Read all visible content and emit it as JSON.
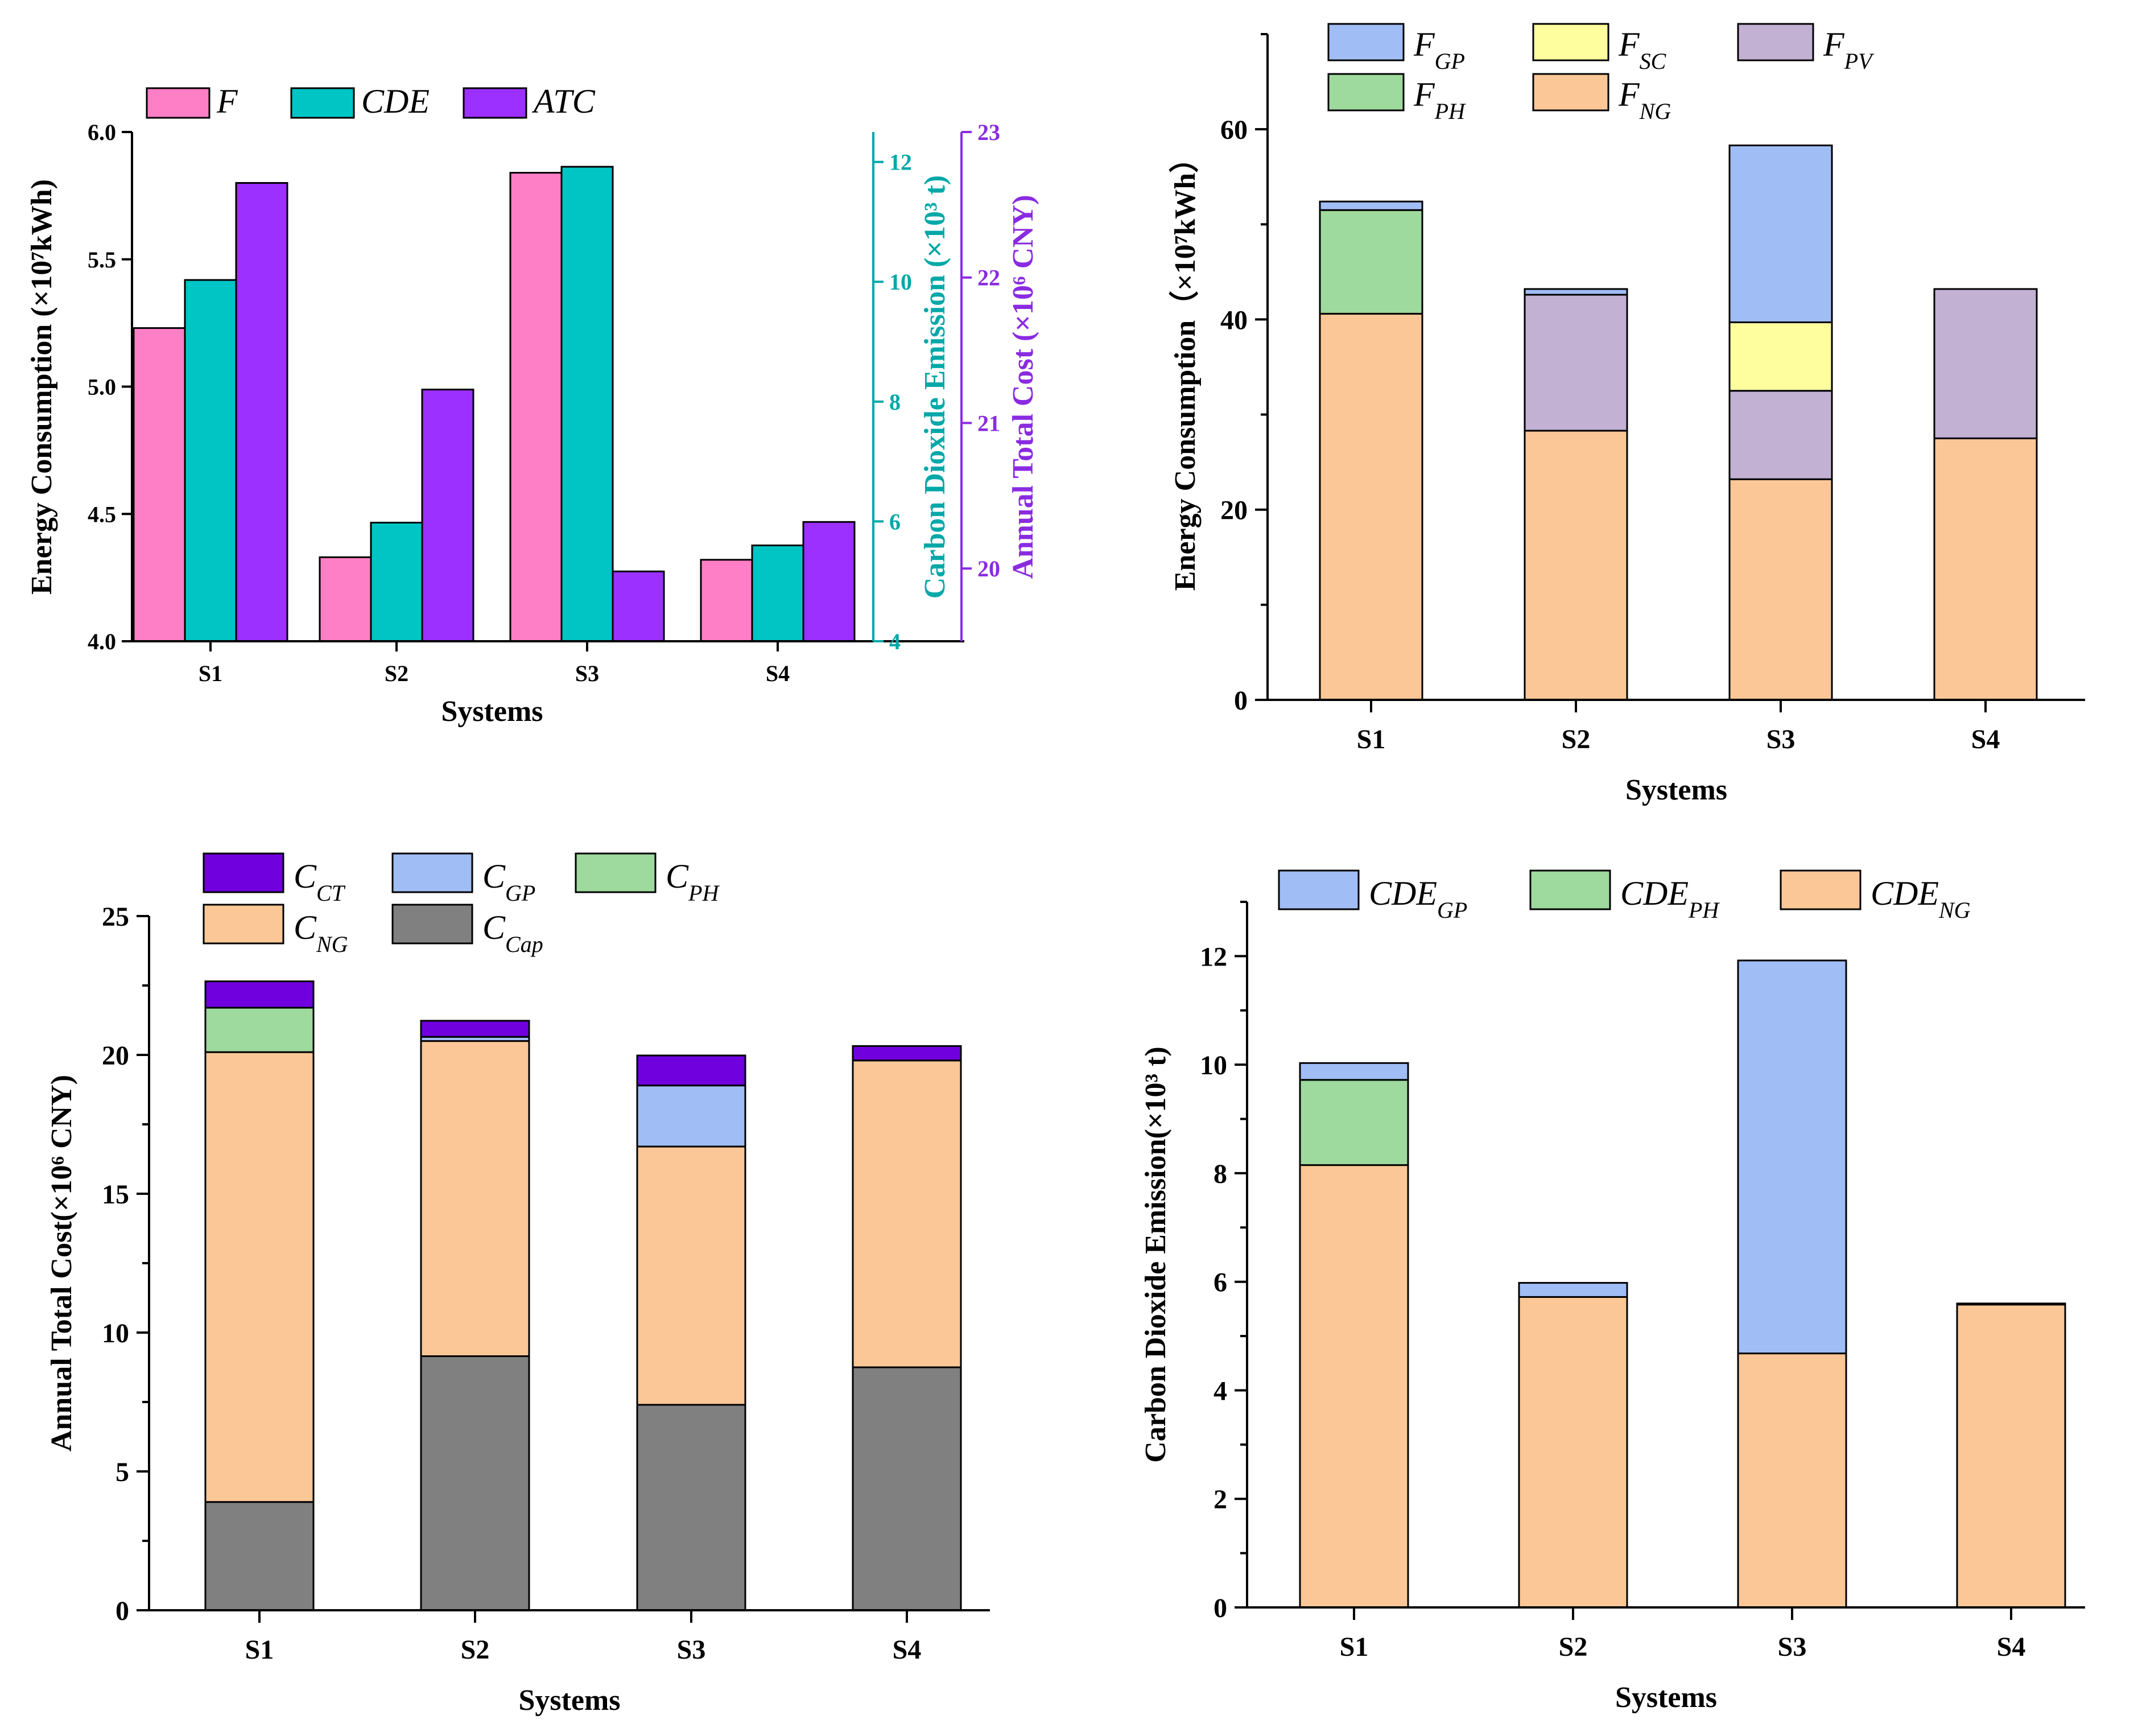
{
  "chart_data": [
    {
      "type": "bar",
      "panel": "top-left",
      "categories": [
        "S1",
        "S2",
        "S3",
        "S4"
      ],
      "xlabel": "Systems",
      "series": [
        {
          "name": "F",
          "axis": "left",
          "color": "#ff7fc6",
          "values": [
            5.23,
            4.33,
            5.84,
            4.32
          ]
        },
        {
          "name": "CDE",
          "axis": "right1",
          "color": "#00c5c5",
          "values": [
            10.03,
            5.98,
            11.92,
            5.6
          ]
        },
        {
          "name": "ATC",
          "axis": "right2",
          "color": "#9b30ff",
          "values": [
            22.65,
            21.23,
            19.98,
            20.32
          ]
        }
      ],
      "axes": {
        "left": {
          "label": "Energy Consumption (×10⁷kWh)",
          "ylim": [
            4.0,
            6.0
          ],
          "ticks": [
            "4.0",
            "4.5",
            "5.0",
            "5.5",
            "6.0"
          ],
          "color": "#000000"
        },
        "right1": {
          "label": "Carbon Dioxide Emission (×10³ t)",
          "ylim": [
            4,
            12.5
          ],
          "ticks": [
            "4",
            "6",
            "8",
            "10",
            "12"
          ],
          "color": "#00a8a8"
        },
        "right2": {
          "label": "Annual Total Cost (×10⁶ CNY)",
          "ylim": [
            19.5,
            23
          ],
          "ticks": [
            "20",
            "21",
            "22",
            "23"
          ],
          "color": "#8a2be2"
        }
      },
      "legend": [
        "F",
        "CDE",
        "ATC"
      ]
    },
    {
      "type": "stacked-bar",
      "panel": "top-right",
      "categories": [
        "S1",
        "S2",
        "S3",
        "S4"
      ],
      "xlabel": "Systems",
      "ylabel": "Energy Consumption（×10⁷kWh）",
      "ylim": [
        0,
        70
      ],
      "yticks": [
        "0",
        "20",
        "40",
        "60"
      ],
      "series": [
        {
          "name": "F_NG",
          "base": "F",
          "sub": "NG",
          "color": "#fbc797",
          "values": [
            40.6,
            28.3,
            23.2,
            27.5
          ]
        },
        {
          "name": "F_PH",
          "base": "F",
          "sub": "PH",
          "color": "#9ed99e",
          "values": [
            10.9,
            0,
            0,
            0
          ]
        },
        {
          "name": "F_PV",
          "base": "F",
          "sub": "PV",
          "color": "#c3b1d4",
          "values": [
            0,
            14.3,
            9.3,
            15.7
          ]
        },
        {
          "name": "F_SC",
          "base": "F",
          "sub": "SC",
          "color": "#fefe9f",
          "values": [
            0,
            0,
            7.2,
            0
          ]
        },
        {
          "name": "F_GP",
          "base": "F",
          "sub": "GP",
          "color": "#a0bdf5",
          "values": [
            0.9,
            0.6,
            18.6,
            0
          ]
        }
      ],
      "legend_order": [
        "F_GP",
        "F_SC",
        "F_PV",
        "F_PH",
        "F_NG"
      ]
    },
    {
      "type": "stacked-bar",
      "panel": "bottom-left",
      "categories": [
        "S1",
        "S2",
        "S3",
        "S4"
      ],
      "xlabel": "Systems",
      "ylabel": "Annual Total Cost(×10⁶ CNY)",
      "ylim": [
        0,
        25
      ],
      "yticks": [
        "0",
        "5",
        "10",
        "15",
        "20",
        "25"
      ],
      "series": [
        {
          "name": "C_Cap",
          "base": "C",
          "sub": "Cap",
          "color": "#808080",
          "values": [
            3.9,
            9.15,
            7.4,
            8.75
          ]
        },
        {
          "name": "C_NG",
          "base": "C",
          "sub": "NG",
          "color": "#fbc797",
          "values": [
            16.2,
            11.35,
            9.3,
            11.05
          ]
        },
        {
          "name": "C_PH",
          "base": "C",
          "sub": "PH",
          "color": "#9ed99e",
          "values": [
            1.6,
            0,
            0,
            0
          ]
        },
        {
          "name": "C_GP",
          "base": "C",
          "sub": "GP",
          "color": "#a0bdf5",
          "values": [
            0,
            0.15,
            2.2,
            0
          ]
        },
        {
          "name": "C_CT",
          "base": "C",
          "sub": "CT",
          "color": "#7000dd",
          "values": [
            0.95,
            0.58,
            1.08,
            0.52
          ]
        }
      ],
      "legend_order": [
        "C_CT",
        "C_GP",
        "C_PH",
        "C_NG",
        "C_Cap"
      ]
    },
    {
      "type": "stacked-bar",
      "panel": "bottom-right",
      "categories": [
        "S1",
        "S2",
        "S3",
        "S4"
      ],
      "xlabel": "Systems",
      "ylabel": "Carbon Dioxide Emission(×10³ t)",
      "ylim": [
        0,
        13
      ],
      "yticks": [
        "0",
        "2",
        "4",
        "6",
        "8",
        "10",
        "12"
      ],
      "series": [
        {
          "name": "CDE_NG",
          "base": "CDE",
          "sub": "NG",
          "color": "#fbc797",
          "values": [
            8.15,
            5.72,
            4.68,
            5.58
          ]
        },
        {
          "name": "CDE_PH",
          "base": "CDE",
          "sub": "PH",
          "color": "#9ed99e",
          "values": [
            1.57,
            0,
            0,
            0
          ]
        },
        {
          "name": "CDE_GP",
          "base": "CDE",
          "sub": "GP",
          "color": "#a0bdf5",
          "values": [
            0.31,
            0.26,
            7.24,
            0.02
          ]
        }
      ],
      "legend_order": [
        "CDE_GP",
        "CDE_PH",
        "CDE_NG"
      ]
    }
  ]
}
